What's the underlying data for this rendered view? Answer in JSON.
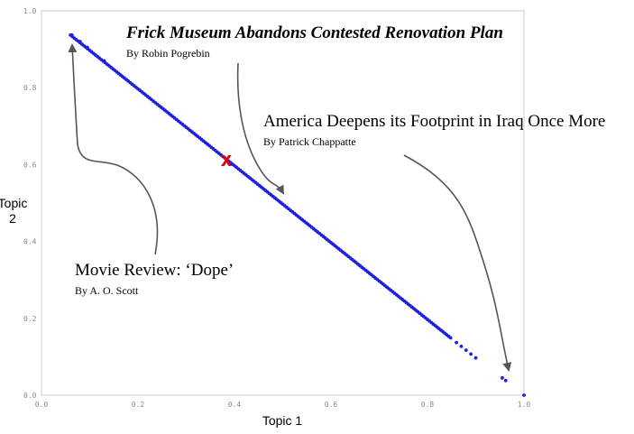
{
  "chart_data": {
    "type": "scatter",
    "title": "",
    "xlabel": "Topic 1",
    "ylabel": "Topic\n2",
    "xlim": [
      0.0,
      1.0
    ],
    "ylim": [
      0.0,
      1.0
    ],
    "x_ticks": [
      "0.0",
      "0.2",
      "0.4",
      "0.6",
      "0.8",
      "1.0"
    ],
    "y_ticks": [
      "0.0",
      "0.2",
      "0.4",
      "0.6",
      "0.8",
      "1.0"
    ],
    "grid": false,
    "point_color": "#1f1fe0",
    "marker_color": "#e00000",
    "series": [
      {
        "points": {
          "dense_segments": [
            {
              "x_from": 0.06,
              "x_to": 0.85,
              "step": 0.004
            },
            {
              "x_from": 0.86,
              "x_to": 0.9,
              "step": 0.01
            }
          ],
          "extra": [
            {
              "x": 0.063,
              "y": 0.937
            },
            {
              "x": 0.08,
              "y": 0.92
            },
            {
              "x": 0.095,
              "y": 0.905
            },
            {
              "x": 0.13,
              "y": 0.87
            },
            {
              "x": 0.955,
              "y": 0.045
            },
            {
              "x": 0.962,
              "y": 0.038
            },
            {
              "x": 1.0,
              "y": 0.0
            }
          ]
        }
      }
    ],
    "marked_point": {
      "label": "x",
      "x": 0.38,
      "y": 0.62
    },
    "annotations": [
      {
        "title": "Frick Museum Abandons Contested Renovation Plan",
        "byline": "By Robin Pogrebin",
        "points_to": {
          "x": 0.5,
          "y": 0.52
        },
        "style": "bold-italic"
      },
      {
        "title": "America Deepens its Footprint in Iraq Once More",
        "byline": "By Patrick Chappatte",
        "points_to": {
          "x": 0.965,
          "y": 0.04
        },
        "style": "regular"
      },
      {
        "title": "Movie Review: ‘Dope’",
        "byline": "By A. O. Scott",
        "points_to": {
          "x": 0.06,
          "y": 0.92
        },
        "style": "regular"
      }
    ]
  }
}
